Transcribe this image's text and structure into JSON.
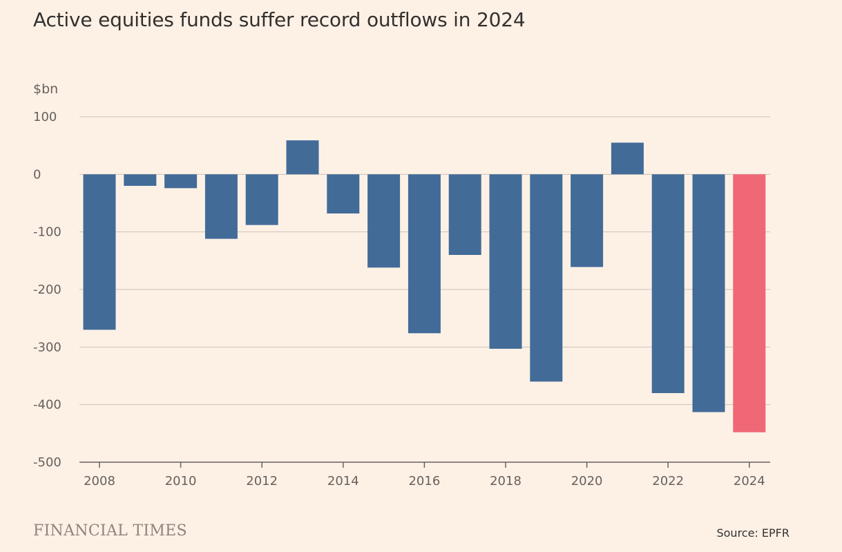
{
  "chart_data": {
    "type": "bar",
    "title": "Active equities funds suffer record outflows in 2024",
    "unit_label": "$bn",
    "xlabel": "",
    "ylabel": "$bn",
    "ylim": [
      -500,
      100
    ],
    "y_ticks": [
      100,
      0,
      -100,
      -200,
      -300,
      -400,
      -500
    ],
    "y_tick_labels": [
      "100",
      "0",
      "-100",
      "-200",
      "-300",
      "-400",
      "-500"
    ],
    "x_tick_labels": [
      "2008",
      "2010",
      "2012",
      "2014",
      "2016",
      "2018",
      "2020",
      "2022",
      "2024"
    ],
    "categories": [
      "2008",
      "2009",
      "2010",
      "2011",
      "2012",
      "2013",
      "2014",
      "2015",
      "2016",
      "2017",
      "2018",
      "2019",
      "2020",
      "2021",
      "2022",
      "2023",
      "2024"
    ],
    "values": [
      -270,
      -20,
      -24,
      -112,
      -88,
      59,
      -68,
      -162,
      -276,
      -140,
      -303,
      -360,
      -161,
      55,
      -380,
      -413,
      -448
    ],
    "grid": true,
    "legend": "none",
    "bar_color": "#426b98",
    "highlight_color": "#f06775",
    "highlight_category": "2024"
  },
  "footer": {
    "brand": "FINANCIAL TIMES",
    "source": "Source: EPFR"
  }
}
